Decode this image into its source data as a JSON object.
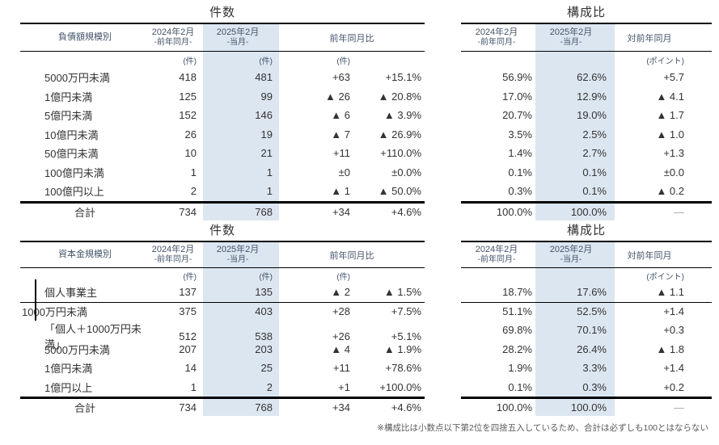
{
  "page": {
    "footnote": "※構成比は小数点以下第2位を四捨五入しているため、合計は必ずしも100とはならない"
  },
  "colors": {
    "highlight_column": "#dce6f1",
    "header_text": "#44546a",
    "body_text": "#333333",
    "total_dash": "#a6a6a6"
  },
  "tables": {
    "debt_count": {
      "title": "件数",
      "category_header": "負債額規模別",
      "columns": {
        "prev": "2024年2月",
        "prev_sub": "-前年同月-",
        "curr": "2025年2月",
        "curr_sub": "-当月-",
        "yoy": "前年同月比"
      },
      "units": {
        "prev": "(件)",
        "curr": "(件)",
        "diff": "(件)"
      },
      "rows": [
        {
          "label": "5000万円未満",
          "prev": "418",
          "curr": "481",
          "diff": "+63",
          "pct": "+15.1%"
        },
        {
          "label": "1億円未満",
          "prev": "125",
          "curr": "99",
          "diff": "▲ 26",
          "pct": "▲ 20.8%"
        },
        {
          "label": "5億円未満",
          "prev": "152",
          "curr": "146",
          "diff": "▲ 6",
          "pct": "▲ 3.9%"
        },
        {
          "label": "10億円未満",
          "prev": "26",
          "curr": "19",
          "diff": "▲ 7",
          "pct": "▲ 26.9%"
        },
        {
          "label": "50億円未満",
          "prev": "10",
          "curr": "21",
          "diff": "+11",
          "pct": "+110.0%"
        },
        {
          "label": "100億円未満",
          "prev": "1",
          "curr": "1",
          "diff": "±0",
          "pct": "±0.0%"
        },
        {
          "label": "100億円以上",
          "prev": "2",
          "curr": "1",
          "diff": "▲ 1",
          "pct": "▲ 50.0%"
        }
      ],
      "total": {
        "label": "合計",
        "prev": "734",
        "curr": "768",
        "diff": "+34",
        "pct": "+4.6%"
      }
    },
    "debt_ratio": {
      "title": "構成比",
      "columns": {
        "prev": "2024年2月",
        "prev_sub": "-前年同月-",
        "curr": "2025年2月",
        "curr_sub": "-当月-",
        "yoy": "対前年同月"
      },
      "units": {
        "diff": "(ポイント)"
      },
      "rows": [
        {
          "prev": "56.9%",
          "curr": "62.6%",
          "diff": "+5.7"
        },
        {
          "prev": "17.0%",
          "curr": "12.9%",
          "diff": "▲ 4.1"
        },
        {
          "prev": "20.7%",
          "curr": "19.0%",
          "diff": "▲ 1.7"
        },
        {
          "prev": "3.5%",
          "curr": "2.5%",
          "diff": "▲ 1.0"
        },
        {
          "prev": "1.4%",
          "curr": "2.7%",
          "diff": "+1.3"
        },
        {
          "prev": "0.1%",
          "curr": "0.1%",
          "diff": "±0.0"
        },
        {
          "prev": "0.3%",
          "curr": "0.1%",
          "diff": "▲ 0.2"
        }
      ],
      "total": {
        "prev": "100.0%",
        "curr": "100.0%",
        "diff": "―"
      }
    },
    "capital_count": {
      "title": "件数",
      "category_header": "資本金規模別",
      "columns": {
        "prev": "2024年2月",
        "prev_sub": "-前年同月-",
        "curr": "2025年2月",
        "curr_sub": "-当月-",
        "yoy": "前年同月比"
      },
      "units": {
        "prev": "(件)",
        "curr": "(件)",
        "diff": "(件)"
      },
      "rows": [
        {
          "label": "個人事業主",
          "prev": "137",
          "curr": "135",
          "diff": "▲ 2",
          "pct": "▲ 1.5%"
        },
        {
          "label": "1000万円未満",
          "prev": "375",
          "curr": "403",
          "diff": "+28",
          "pct": "+7.5%"
        },
        {
          "label": "「個人＋1000万円未満」",
          "prev": "512",
          "curr": "538",
          "diff": "+26",
          "pct": "+5.1%"
        },
        {
          "label": "5000万円未満",
          "prev": "207",
          "curr": "203",
          "diff": "▲ 4",
          "pct": "▲ 1.9%"
        },
        {
          "label": "1億円未満",
          "prev": "14",
          "curr": "25",
          "diff": "+11",
          "pct": "+78.6%"
        },
        {
          "label": "1億円以上",
          "prev": "1",
          "curr": "2",
          "diff": "+1",
          "pct": "+100.0%"
        }
      ],
      "total": {
        "label": "合計",
        "prev": "734",
        "curr": "768",
        "diff": "+34",
        "pct": "+4.6%"
      }
    },
    "capital_ratio": {
      "title": "構成比",
      "columns": {
        "prev": "2024年2月",
        "prev_sub": "-前年同月-",
        "curr": "2025年2月",
        "curr_sub": "-当月-",
        "yoy": "対前年同月"
      },
      "units": {
        "diff": "(ポイント)"
      },
      "rows": [
        {
          "prev": "18.7%",
          "curr": "17.6%",
          "diff": "▲ 1.1"
        },
        {
          "prev": "51.1%",
          "curr": "52.5%",
          "diff": "+1.4"
        },
        {
          "prev": "69.8%",
          "curr": "70.1%",
          "diff": "+0.3"
        },
        {
          "prev": "28.2%",
          "curr": "26.4%",
          "diff": "▲ 1.8"
        },
        {
          "prev": "1.9%",
          "curr": "3.3%",
          "diff": "+1.4"
        },
        {
          "prev": "0.1%",
          "curr": "0.3%",
          "diff": "+0.2"
        }
      ],
      "total": {
        "prev": "100.0%",
        "curr": "100.0%",
        "diff": "―"
      }
    }
  }
}
